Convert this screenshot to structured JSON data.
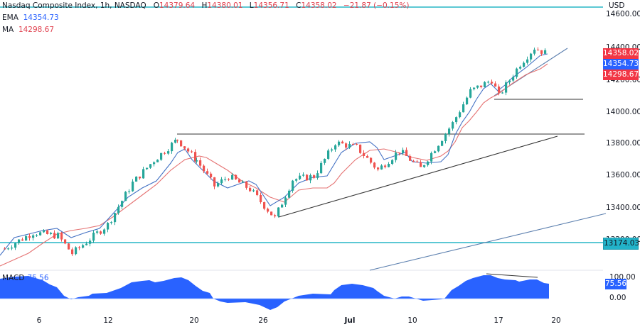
{
  "header": {
    "symbol_title": "Nasdaq Composite Index, 1h, NASDAQ",
    "ohlc": {
      "open_label": "O",
      "open": "14379.64",
      "high_label": "H",
      "high": "14380.01",
      "low_label": "L",
      "low": "14356.71",
      "close_label": "C",
      "close": "14358.02",
      "change": "−21.87 (−0.15%)"
    },
    "ema_label": "EMA",
    "ema_value": "14354.73",
    "ma_label": "MA",
    "ma_value": "14298.67"
  },
  "price_axis": {
    "currency": "USD",
    "ticks": [
      "14600.00",
      "14400.00",
      "14200.00",
      "14000.00",
      "13800.00",
      "13600.00",
      "13400.00",
      "13200.00"
    ],
    "tags": {
      "close": "14358.02",
      "ema": "14354.73",
      "ma": "14298.67",
      "support": "13174.03"
    }
  },
  "macd": {
    "label": "MACD",
    "value": "75.56",
    "ticks": [
      "100.00",
      "0.00"
    ]
  },
  "time_axis": {
    "labels": [
      "6",
      "12",
      "20",
      "26",
      "Jul",
      "10",
      "17",
      "20"
    ]
  },
  "colors": {
    "up": "#26a69a",
    "down": "#ef5350",
    "ema": "#2962ff",
    "ma": "#e57373",
    "macd_fill": "#2962ff",
    "horizontal_line": "#26b5c5",
    "trend_line": "#131722",
    "lower_trend_line": "#5b7fae"
  },
  "chart_data": {
    "type": "candlestick",
    "title": "Nasdaq Composite Index, 1h, NASDAQ",
    "xlabel": "",
    "ylabel": "USD",
    "ylim": [
      13100,
      14650
    ],
    "x_ticks": [
      "6",
      "12",
      "20",
      "26",
      "Jul",
      "10",
      "17",
      "20"
    ],
    "y_ticks": [
      13200,
      13400,
      13600,
      13800,
      14000,
      14200,
      14400,
      14600
    ],
    "last": {
      "open": 14379.64,
      "high": 14380.01,
      "low": 14356.71,
      "close": 14358.02,
      "change": -21.87,
      "change_pct": -0.15
    },
    "indicators": {
      "EMA": 14354.73,
      "MA": 14298.67,
      "MACD": 75.56
    },
    "levels": {
      "support_line": 13174.03,
      "resistance_line_top": 14650,
      "range_high": 13855,
      "pullback_low": 14080
    },
    "approx_close_path": [
      {
        "x": "Jun 1",
        "close": 13150
      },
      {
        "x": "Jun 5",
        "close": 13250
      },
      {
        "x": "Jun 7",
        "close": 13230
      },
      {
        "x": "Jun 8",
        "close": 13120
      },
      {
        "x": "Jun 12",
        "close": 13300
      },
      {
        "x": "Jun 14",
        "close": 13560
      },
      {
        "x": "Jun 15",
        "close": 13700
      },
      {
        "x": "Jun 16",
        "close": 13830
      },
      {
        "x": "Jun 20",
        "close": 13700
      },
      {
        "x": "Jun 22",
        "close": 13540
      },
      {
        "x": "Jun 23",
        "close": 13600
      },
      {
        "x": "Jun 26",
        "close": 13520
      },
      {
        "x": "Jun 27",
        "close": 13340
      },
      {
        "x": "Jun 29",
        "close": 13580
      },
      {
        "x": "Jun 30",
        "close": 13600
      },
      {
        "x": "Jul 3",
        "close": 13810
      },
      {
        "x": "Jul 6",
        "close": 13780
      },
      {
        "x": "Jul 7",
        "close": 13640
      },
      {
        "x": "Jul 10",
        "close": 13760
      },
      {
        "x": "Jul 11",
        "close": 13650
      },
      {
        "x": "Jul 12",
        "close": 13930
      },
      {
        "x": "Jul 13",
        "close": 14130
      },
      {
        "x": "Jul 14",
        "close": 14200
      },
      {
        "x": "Jul 17",
        "close": 14100
      },
      {
        "x": "Jul 18",
        "close": 14300
      },
      {
        "x": "Jul 19",
        "close": 14400
      },
      {
        "x": "Jul 20",
        "close": 14358
      }
    ],
    "trendlines": [
      {
        "name": "horizontal resistance",
        "from": {
          "x": "Jun 16",
          "y": 13855
        },
        "to": {
          "x": "Jul 20",
          "y": 13855
        }
      },
      {
        "name": "rising support",
        "from": {
          "x": "Jun 27",
          "y": 13330
        },
        "to": {
          "x": "Jul 19",
          "y": 13840
        }
      },
      {
        "name": "short-term support",
        "from": {
          "x": "Jul 17",
          "y": 14090
        },
        "to": {
          "x": "Jul 20",
          "y": 14380
        }
      },
      {
        "name": "pullback low",
        "from": {
          "x": "Jul 17",
          "y": 14080
        },
        "to": {
          "x": "Jul 21",
          "y": 14080
        }
      },
      {
        "name": "long-term channel",
        "from": {
          "x": "Jul 6",
          "y": 12990
        },
        "to": {
          "x": "Jul 21",
          "y": 13330
        }
      }
    ]
  }
}
